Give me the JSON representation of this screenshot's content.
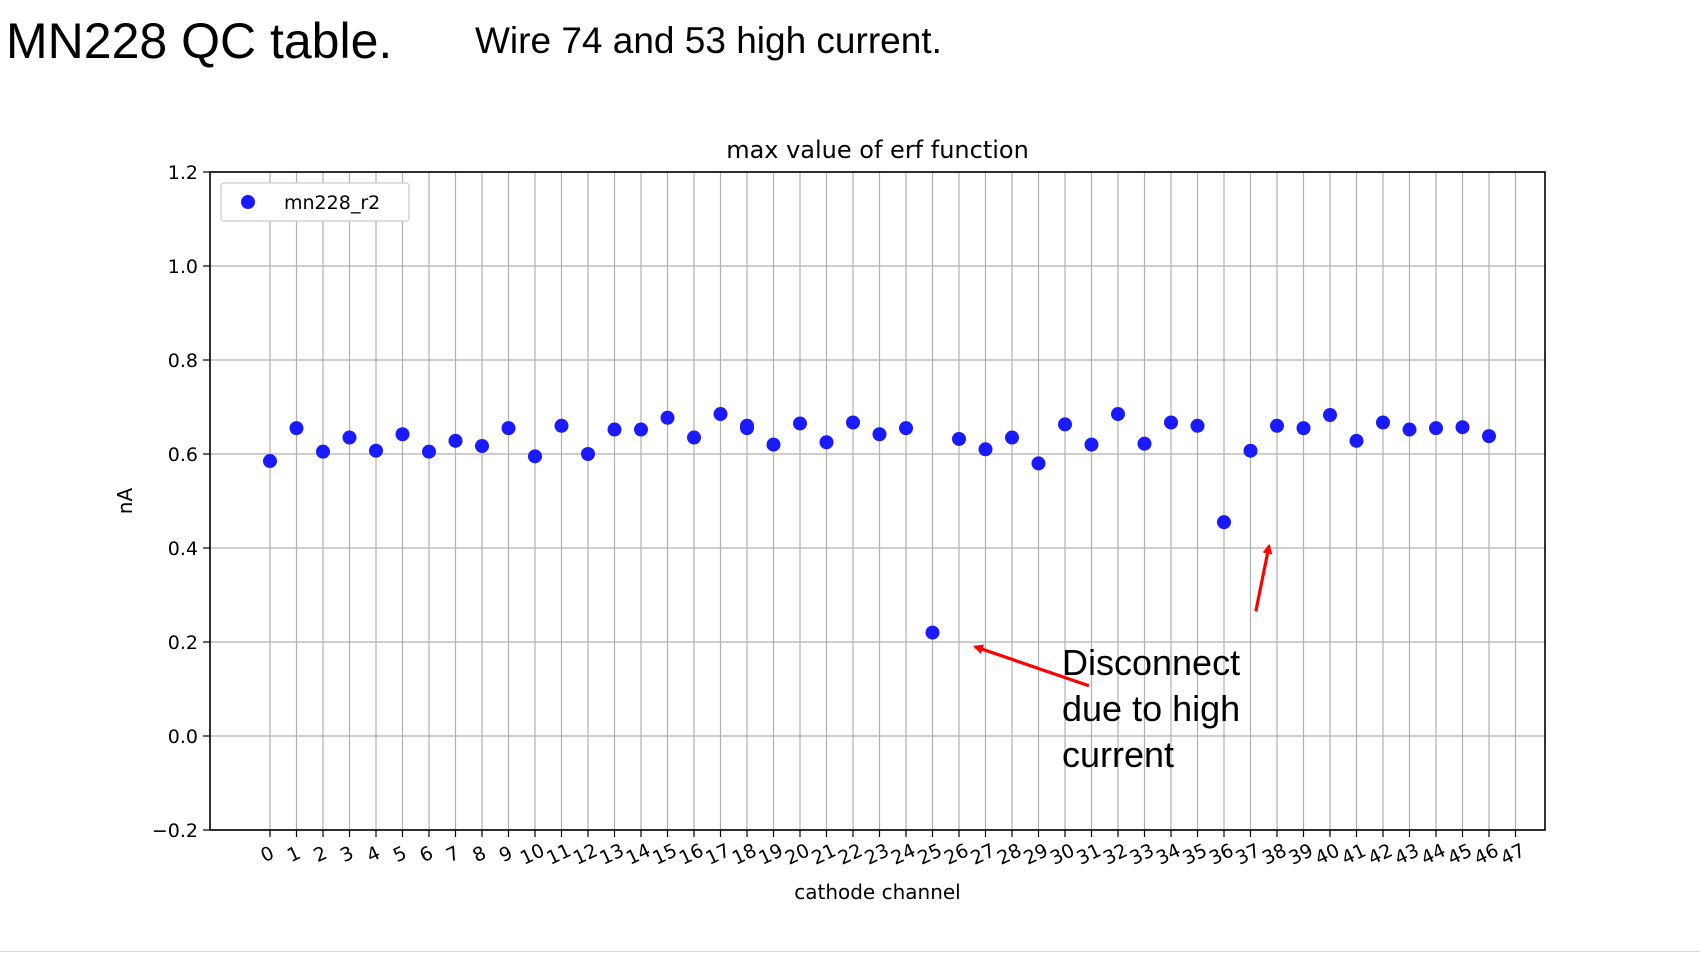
{
  "slide": {
    "title": "MN228 QC table.",
    "subtitle": "Wire 74 and 53 high current."
  },
  "chart_data": {
    "type": "scatter",
    "title": "max value of erf function",
    "xlabel": "cathode channel",
    "ylabel": "nA",
    "ylim": [
      -0.2,
      1.2
    ],
    "yticks": [
      -0.2,
      0.0,
      0.2,
      0.4,
      0.6,
      0.8,
      1.0,
      1.2
    ],
    "ytick_labels": [
      "−0.2",
      "0.0",
      "0.2",
      "0.4",
      "0.6",
      "0.8",
      "1.0",
      "1.2"
    ],
    "xticks": [
      0,
      1,
      2,
      3,
      4,
      5,
      6,
      7,
      8,
      9,
      10,
      11,
      12,
      13,
      14,
      15,
      16,
      17,
      18,
      19,
      20,
      21,
      22,
      23,
      24,
      25,
      26,
      27,
      28,
      29,
      30,
      31,
      32,
      33,
      34,
      35,
      36,
      37,
      38,
      39,
      40,
      41,
      42,
      43,
      44,
      45,
      46,
      47
    ],
    "grid": true,
    "legend_position": "upper-left",
    "point_color": "#1a1aff",
    "series": [
      {
        "name": "mn228_r2",
        "points": [
          [
            0,
            0.585
          ],
          [
            1,
            0.655
          ],
          [
            2,
            0.605
          ],
          [
            3,
            0.635
          ],
          [
            4,
            0.607
          ],
          [
            5,
            0.642
          ],
          [
            6,
            0.605
          ],
          [
            7,
            0.628
          ],
          [
            8,
            0.617
          ],
          [
            9,
            0.655
          ],
          [
            10,
            0.595
          ],
          [
            11,
            0.66
          ],
          [
            12,
            0.6
          ],
          [
            13,
            0.652
          ],
          [
            14,
            0.652
          ],
          [
            15,
            0.677
          ],
          [
            16,
            0.635
          ],
          [
            17,
            0.685
          ],
          [
            18,
            0.66
          ],
          [
            18,
            0.655
          ],
          [
            19,
            0.62
          ],
          [
            20,
            0.665
          ],
          [
            21,
            0.625
          ],
          [
            22,
            0.667
          ],
          [
            23,
            0.642
          ],
          [
            24,
            0.655
          ],
          [
            25,
            0.22
          ],
          [
            26,
            0.632
          ],
          [
            27,
            0.61
          ],
          [
            28,
            0.635
          ],
          [
            29,
            0.58
          ],
          [
            30,
            0.663
          ],
          [
            31,
            0.62
          ],
          [
            32,
            0.685
          ],
          [
            33,
            0.622
          ],
          [
            34,
            0.667
          ],
          [
            35,
            0.66
          ],
          [
            36,
            0.455
          ],
          [
            37,
            0.607
          ],
          [
            38,
            0.66
          ],
          [
            39,
            0.655
          ],
          [
            40,
            0.683
          ],
          [
            41,
            0.628
          ],
          [
            42,
            0.667
          ],
          [
            43,
            0.652
          ],
          [
            44,
            0.655
          ],
          [
            45,
            0.657
          ],
          [
            46,
            0.638
          ]
        ]
      }
    ],
    "annotations": [
      {
        "text_lines": [
          "Disconnect",
          "due to high",
          "current"
        ],
        "color": "#000000",
        "arrow_color": "#ff0000",
        "arrows": [
          {
            "from": [
              30.9,
              0.107
            ],
            "to": [
              26.6,
              0.19
            ]
          },
          {
            "from": [
              37.2,
              0.265
            ],
            "to": [
              37.7,
              0.405
            ]
          }
        ]
      }
    ]
  }
}
